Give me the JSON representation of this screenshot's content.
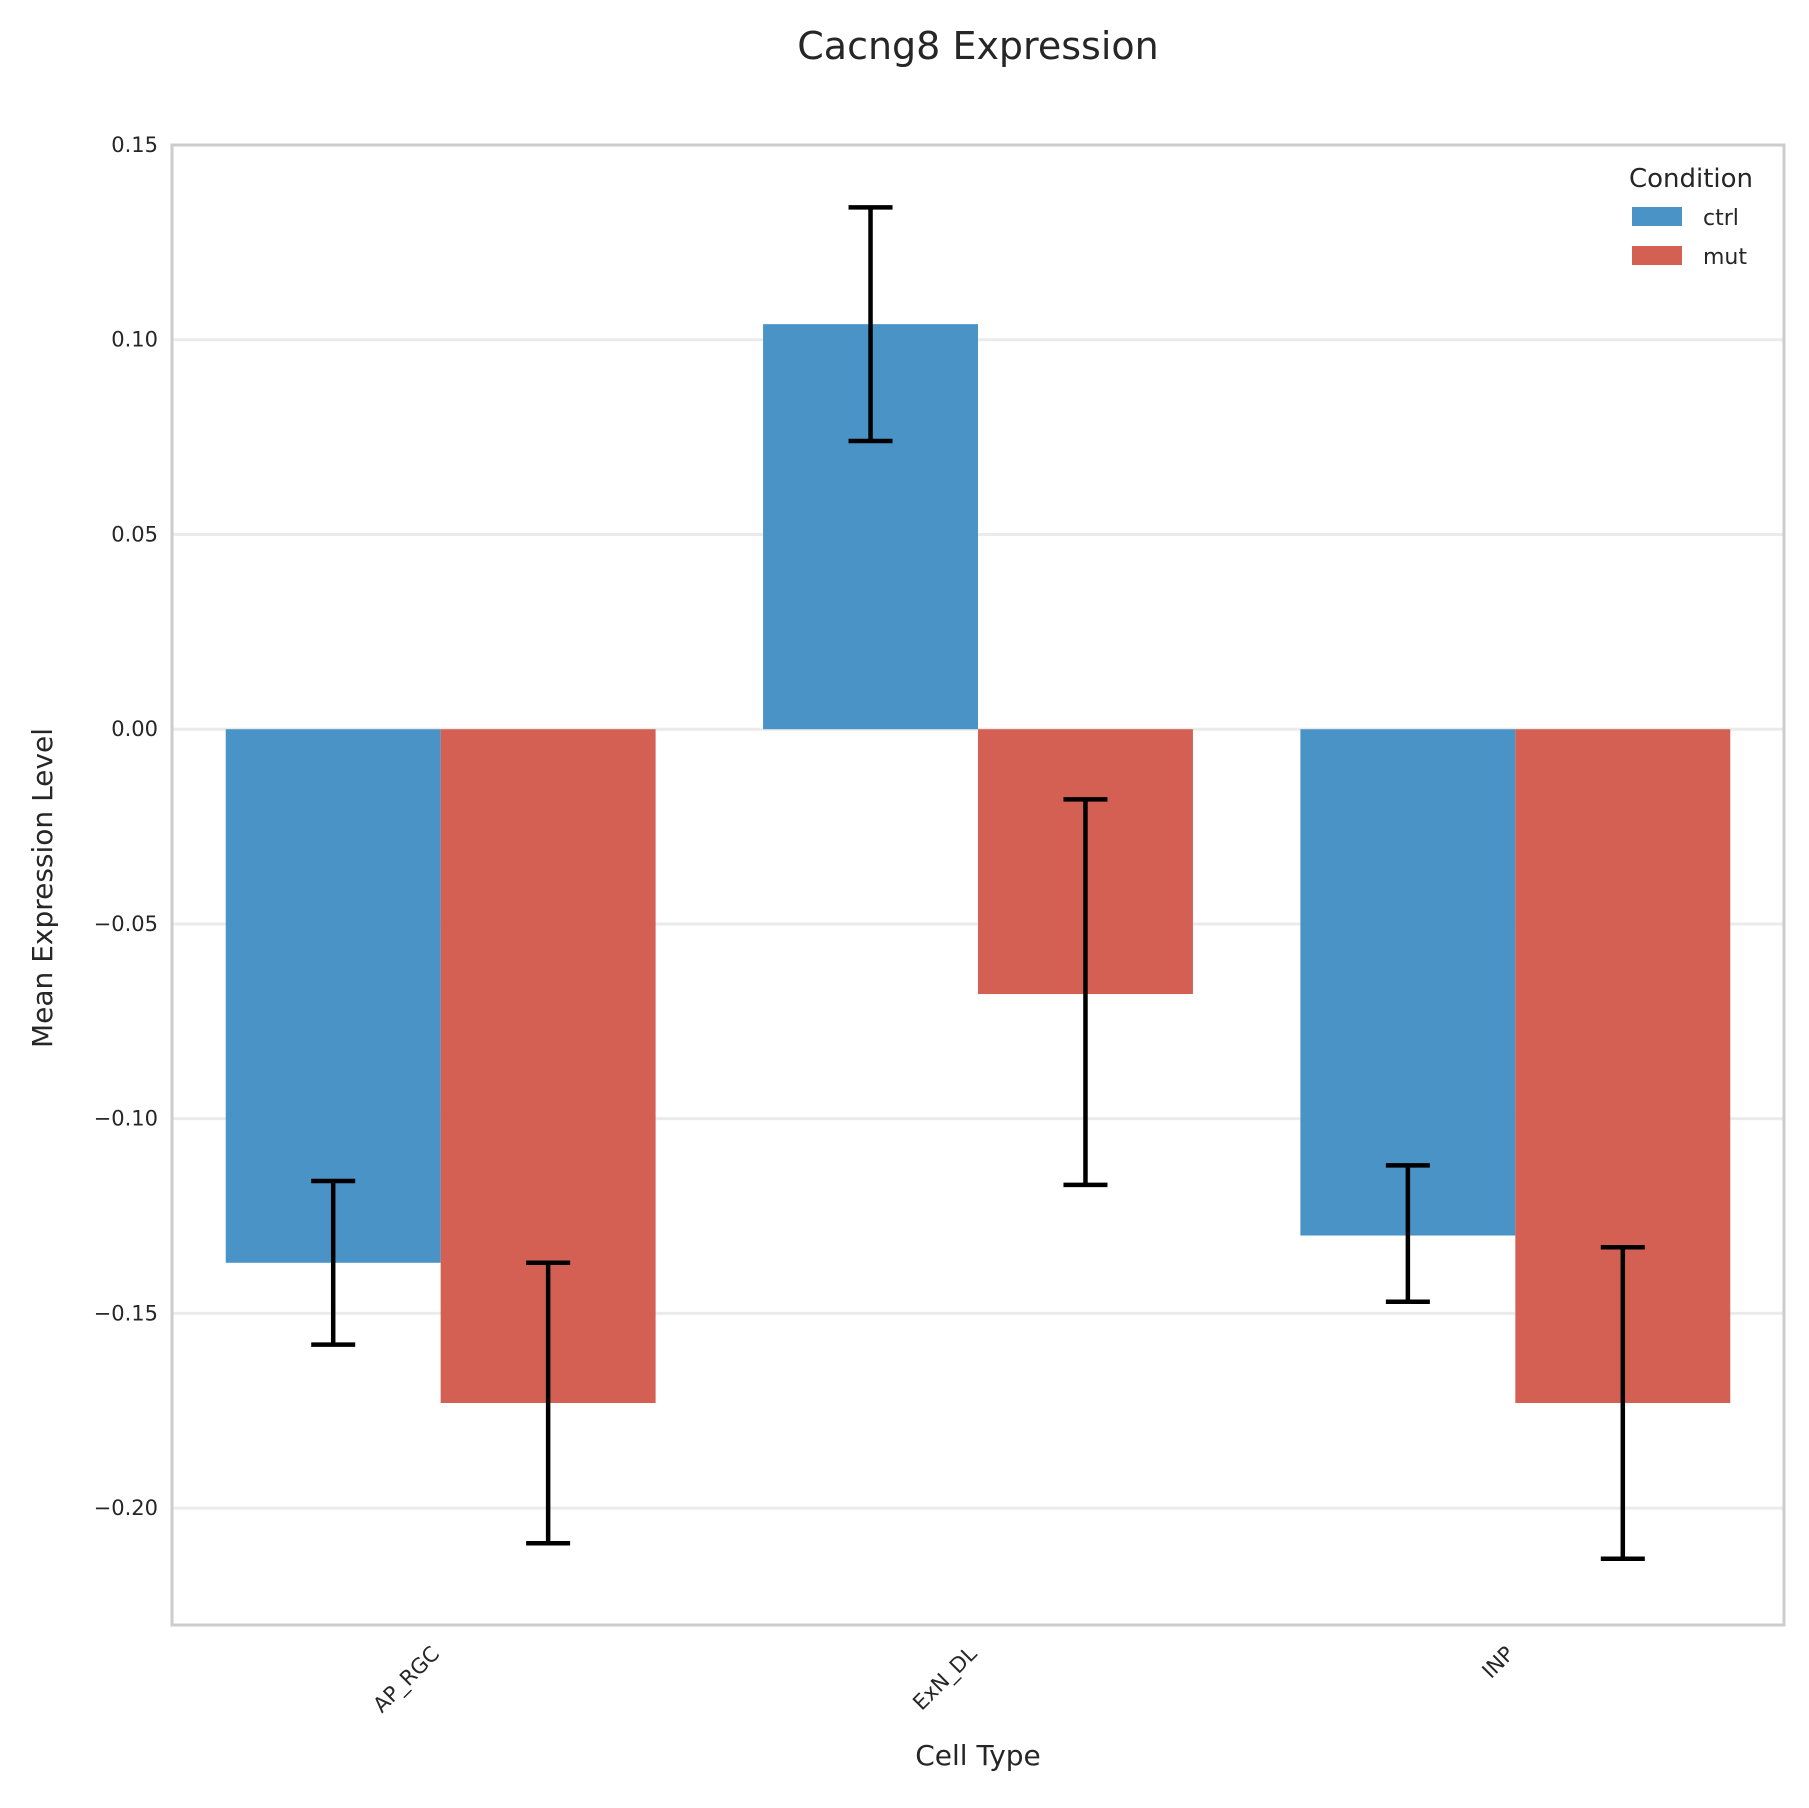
{
  "chart_data": {
    "type": "bar",
    "title": "Cacng8 Expression",
    "xlabel": "Cell Type",
    "ylabel": "Mean Expression Level",
    "categories": [
      "AP_RGC",
      "ExN_DL",
      "INP"
    ],
    "series": [
      {
        "name": "ctrl",
        "color": "#4a93c7",
        "values": [
          -0.137,
          0.104,
          -0.13
        ],
        "error_low": [
          -0.158,
          0.074,
          -0.147
        ],
        "error_high": [
          -0.116,
          0.134,
          -0.112
        ]
      },
      {
        "name": "mut",
        "color": "#d45f53",
        "values": [
          -0.173,
          -0.068,
          -0.173
        ],
        "error_low": [
          -0.209,
          -0.117,
          -0.213
        ],
        "error_high": [
          -0.137,
          -0.018,
          -0.133
        ]
      }
    ],
    "ylim": [
      -0.23,
      0.15
    ],
    "yticks": [
      0.15,
      0.1,
      0.05,
      0.0,
      -0.05,
      -0.1,
      -0.15,
      -0.2
    ],
    "ytick_labels": [
      "0.15",
      "0.10",
      "0.05",
      "0.00",
      "−0.05",
      "−0.10",
      "−0.15",
      "−0.20"
    ],
    "grid": "y",
    "legend": {
      "title": "Condition",
      "placement": "top-right",
      "entries": [
        "ctrl",
        "mut"
      ]
    }
  }
}
